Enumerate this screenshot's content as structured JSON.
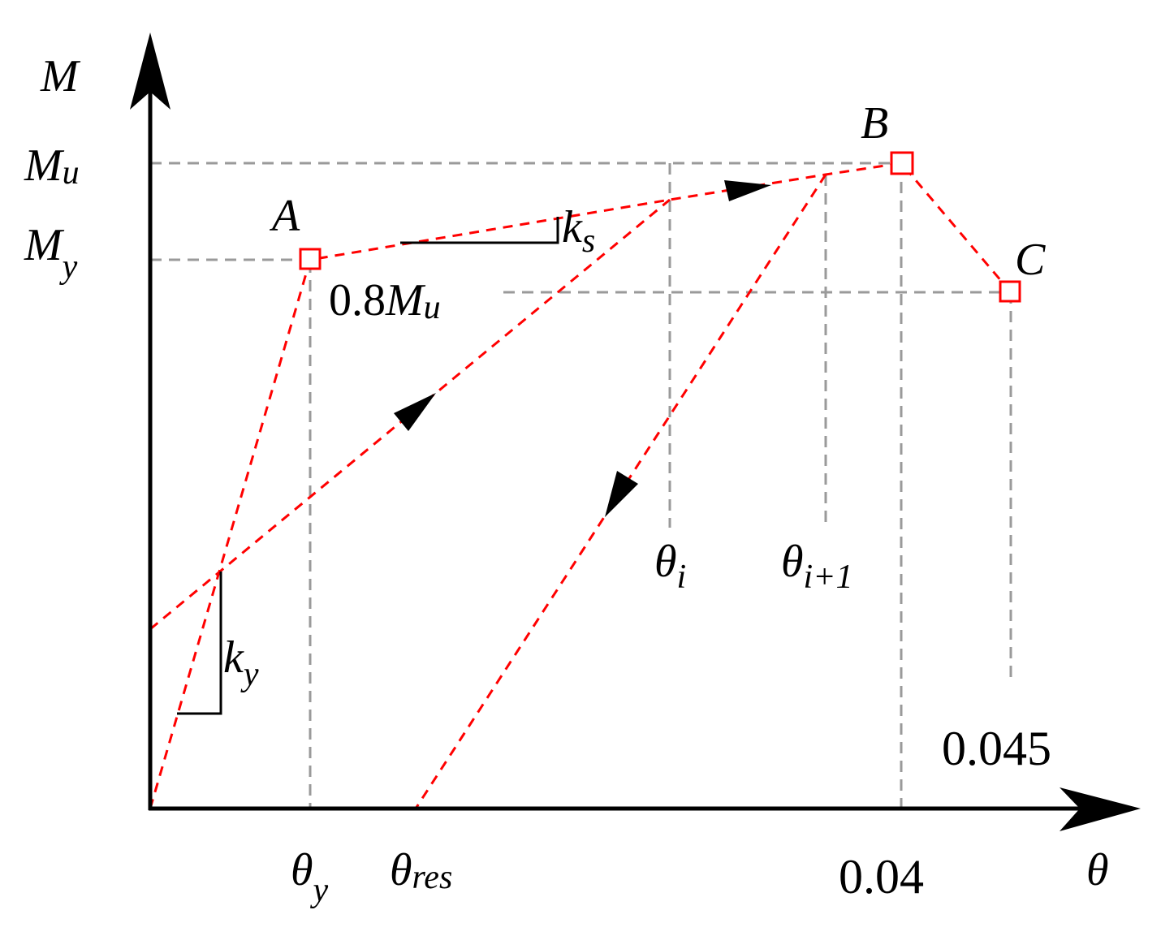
{
  "axes": {
    "y_label": "M",
    "x_label": "θ"
  },
  "y_ticks": {
    "mu": {
      "main": "M",
      "sub": "u"
    },
    "my": {
      "main": "M",
      "sub": "y"
    }
  },
  "x_ticks": {
    "theta_y": {
      "main": "θ",
      "sub": "y"
    },
    "theta_res": {
      "main": "θ",
      "sub": "res"
    },
    "theta_i": {
      "main": "θ",
      "sub": "i"
    },
    "theta_i1": {
      "main": "θ",
      "sub": "i+1"
    },
    "x004": "0.04",
    "x0045": "0.045"
  },
  "points": {
    "a": "A",
    "b": "B",
    "c": "C"
  },
  "annotations": {
    "residual": {
      "prefix": "0.8",
      "main": "M",
      "sub": "u"
    },
    "ks": {
      "main": "k",
      "sub": "s"
    },
    "ky": {
      "main": "k",
      "sub": "y"
    }
  },
  "colors": {
    "curve": "#ff0000",
    "guide": "#9a9a9a",
    "axis": "#000000"
  }
}
